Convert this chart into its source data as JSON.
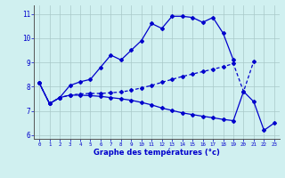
{
  "title": "Graphe des températures (°c)",
  "background_color": "#d0f0f0",
  "grid_color": "#a8c8c8",
  "line_color": "#0000cc",
  "hours": [
    0,
    1,
    2,
    3,
    4,
    5,
    6,
    7,
    8,
    9,
    10,
    11,
    12,
    13,
    14,
    15,
    16,
    17,
    18,
    19,
    20,
    21,
    22,
    23
  ],
  "curve1_x": [
    0,
    1,
    2,
    3,
    4,
    5,
    6,
    7,
    8,
    9,
    10,
    11,
    12,
    13,
    14,
    15,
    16,
    17,
    18,
    19
  ],
  "curve1_y": [
    8.15,
    7.3,
    7.55,
    8.05,
    8.2,
    8.3,
    8.8,
    9.3,
    9.1,
    9.5,
    9.9,
    10.6,
    10.4,
    10.9,
    10.9,
    10.85,
    10.65,
    10.85,
    10.2,
    9.1
  ],
  "curve2_x": [
    0,
    1,
    2,
    3,
    4,
    5,
    6,
    7,
    8,
    9,
    10,
    11,
    12,
    13,
    14,
    15,
    16,
    17,
    18,
    19,
    20,
    21
  ],
  "curve2_y": [
    8.15,
    7.3,
    7.55,
    7.65,
    7.7,
    7.72,
    7.72,
    7.75,
    7.78,
    7.85,
    7.95,
    8.05,
    8.18,
    8.3,
    8.42,
    8.52,
    8.62,
    8.72,
    8.82,
    8.95,
    7.8,
    9.05
  ],
  "curve3_x": [
    0,
    1,
    2,
    3,
    4,
    5,
    6,
    7,
    8,
    9,
    10,
    11,
    12,
    13,
    14,
    15,
    16,
    17,
    18,
    19,
    20,
    21,
    22,
    23
  ],
  "curve3_y": [
    8.15,
    7.3,
    7.55,
    7.65,
    7.65,
    7.63,
    7.6,
    7.55,
    7.5,
    7.44,
    7.35,
    7.25,
    7.12,
    7.02,
    6.92,
    6.85,
    6.78,
    6.72,
    6.65,
    6.6,
    7.8,
    7.38,
    6.2,
    6.5
  ],
  "ylim": [
    5.85,
    11.35
  ],
  "yticks": [
    6,
    7,
    8,
    9,
    10,
    11
  ],
  "xlim": [
    -0.5,
    23.5
  ]
}
